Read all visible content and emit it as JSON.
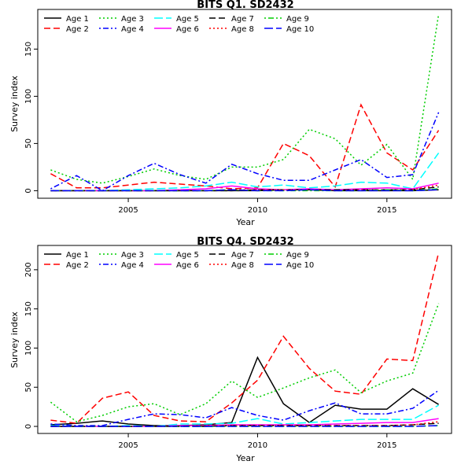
{
  "chart_data": [
    {
      "type": "line",
      "title": "BITS Q1. SD2432",
      "xlabel": "Year",
      "ylabel": "Survey index",
      "xlim": [
        2001.5,
        2017.5
      ],
      "ylim": [
        -8,
        192
      ],
      "xticks": [
        2005,
        2010,
        2015
      ],
      "yticks": [
        0,
        50,
        100,
        150
      ],
      "legend_position": "top-left",
      "x": [
        2002,
        2003,
        2004,
        2005,
        2006,
        2007,
        2008,
        2009,
        2010,
        2011,
        2012,
        2013,
        2014,
        2015,
        2016,
        2017
      ],
      "series": [
        {
          "name": "Age 1",
          "values": [
            0,
            0,
            0,
            0,
            0,
            0,
            0,
            0,
            0,
            1,
            1,
            0,
            0,
            0,
            0,
            1
          ]
        },
        {
          "name": "Age 2",
          "values": [
            18,
            3,
            3,
            6,
            9,
            7,
            5,
            2,
            3,
            50,
            37,
            4,
            91,
            40,
            22,
            64
          ]
        },
        {
          "name": "Age 3",
          "values": [
            22,
            12,
            8,
            15,
            23,
            16,
            12,
            25,
            25,
            33,
            65,
            55,
            27,
            49,
            12,
            187
          ]
        },
        {
          "name": "Age 4",
          "values": [
            2,
            16,
            0,
            16,
            29,
            17,
            8,
            28,
            18,
            11,
            11,
            22,
            33,
            14,
            17,
            83
          ]
        },
        {
          "name": "Age 5",
          "values": [
            0,
            0,
            0,
            1,
            2,
            3,
            5,
            9,
            4,
            6,
            3,
            5,
            9,
            8,
            2,
            40
          ]
        },
        {
          "name": "Age 6",
          "values": [
            0,
            0,
            0,
            0,
            0,
            1,
            2,
            5,
            2,
            1,
            2,
            1,
            2,
            3,
            2,
            8
          ]
        },
        {
          "name": "Age 7",
          "values": [
            0,
            0,
            0,
            0,
            0,
            0,
            0,
            0,
            1,
            1,
            1,
            1,
            1,
            1,
            1,
            4
          ]
        },
        {
          "name": "Age 8",
          "values": [
            0,
            0,
            0,
            0,
            0,
            0,
            0,
            1,
            1,
            1,
            1,
            0,
            1,
            1,
            1,
            6
          ]
        },
        {
          "name": "Age 9",
          "values": [
            0,
            0,
            0,
            0,
            0,
            0,
            0,
            1,
            0,
            0,
            0,
            0,
            0,
            1,
            0,
            2
          ]
        },
        {
          "name": "Age 10",
          "values": [
            0,
            0,
            0,
            0,
            0,
            0,
            0,
            1,
            0,
            0,
            1,
            0,
            0,
            0,
            0,
            1
          ]
        }
      ]
    },
    {
      "type": "line",
      "title": "BITS Q4. SD2432",
      "xlabel": "Year",
      "ylabel": "Survey index",
      "xlim": [
        2001.5,
        2017.5
      ],
      "ylim": [
        -9,
        231
      ],
      "xticks": [
        2005,
        2010,
        2015
      ],
      "yticks": [
        0,
        50,
        100,
        150,
        200
      ],
      "legend_position": "top-left",
      "x": [
        2002,
        2003,
        2004,
        2005,
        2006,
        2007,
        2008,
        2009,
        2010,
        2011,
        2012,
        2013,
        2014,
        2015,
        2016,
        2017
      ],
      "series": [
        {
          "name": "Age 1",
          "values": [
            2,
            4,
            7,
            3,
            1,
            1,
            2,
            5,
            88,
            29,
            5,
            27,
            22,
            22,
            48,
            28
          ]
        },
        {
          "name": "Age 2",
          "values": [
            8,
            4,
            36,
            44,
            14,
            7,
            6,
            30,
            59,
            115,
            74,
            45,
            41,
            86,
            84,
            222
          ]
        },
        {
          "name": "Age 3",
          "values": [
            31,
            6,
            14,
            25,
            29,
            15,
            29,
            58,
            37,
            49,
            62,
            72,
            43,
            58,
            68,
            157
          ]
        },
        {
          "name": "Age 4",
          "values": [
            3,
            1,
            1,
            9,
            16,
            15,
            11,
            24,
            14,
            8,
            20,
            30,
            16,
            16,
            23,
            46
          ]
        },
        {
          "name": "Age 5",
          "values": [
            1,
            0,
            0,
            1,
            0,
            3,
            3,
            4,
            10,
            3,
            5,
            7,
            9,
            9,
            9,
            27
          ]
        },
        {
          "name": "Age 6",
          "values": [
            0,
            0,
            0,
            0,
            0,
            1,
            1,
            2,
            2,
            2,
            2,
            3,
            4,
            5,
            5,
            10
          ]
        },
        {
          "name": "Age 7",
          "values": [
            0,
            0,
            0,
            0,
            0,
            0,
            0,
            1,
            1,
            1,
            1,
            1,
            1,
            1,
            2,
            4
          ]
        },
        {
          "name": "Age 8",
          "values": [
            0,
            0,
            0,
            0,
            0,
            0,
            1,
            1,
            1,
            1,
            1,
            1,
            1,
            1,
            2,
            6
          ]
        },
        {
          "name": "Age 9",
          "values": [
            0,
            0,
            0,
            0,
            0,
            0,
            0,
            0,
            0,
            0,
            0,
            0,
            0,
            0,
            0,
            1
          ]
        },
        {
          "name": "Age 10",
          "values": [
            0,
            0,
            0,
            0,
            0,
            0,
            0,
            0,
            0,
            0,
            0,
            0,
            0,
            0,
            0,
            1
          ]
        }
      ]
    }
  ],
  "series_style": [
    {
      "color": "#000000",
      "dash": "solid"
    },
    {
      "color": "#ff0000",
      "dash": "dashed"
    },
    {
      "color": "#00cd00",
      "dash": "dotted"
    },
    {
      "color": "#0000ff",
      "dash": "dotdash"
    },
    {
      "color": "#00ffff",
      "dash": "longdash"
    },
    {
      "color": "#ff00ff",
      "dash": "solid"
    },
    {
      "color": "#000000",
      "dash": "dashed"
    },
    {
      "color": "#ff0000",
      "dash": "dotted"
    },
    {
      "color": "#00cd00",
      "dash": "dotdash"
    },
    {
      "color": "#0000ff",
      "dash": "longdash"
    }
  ]
}
